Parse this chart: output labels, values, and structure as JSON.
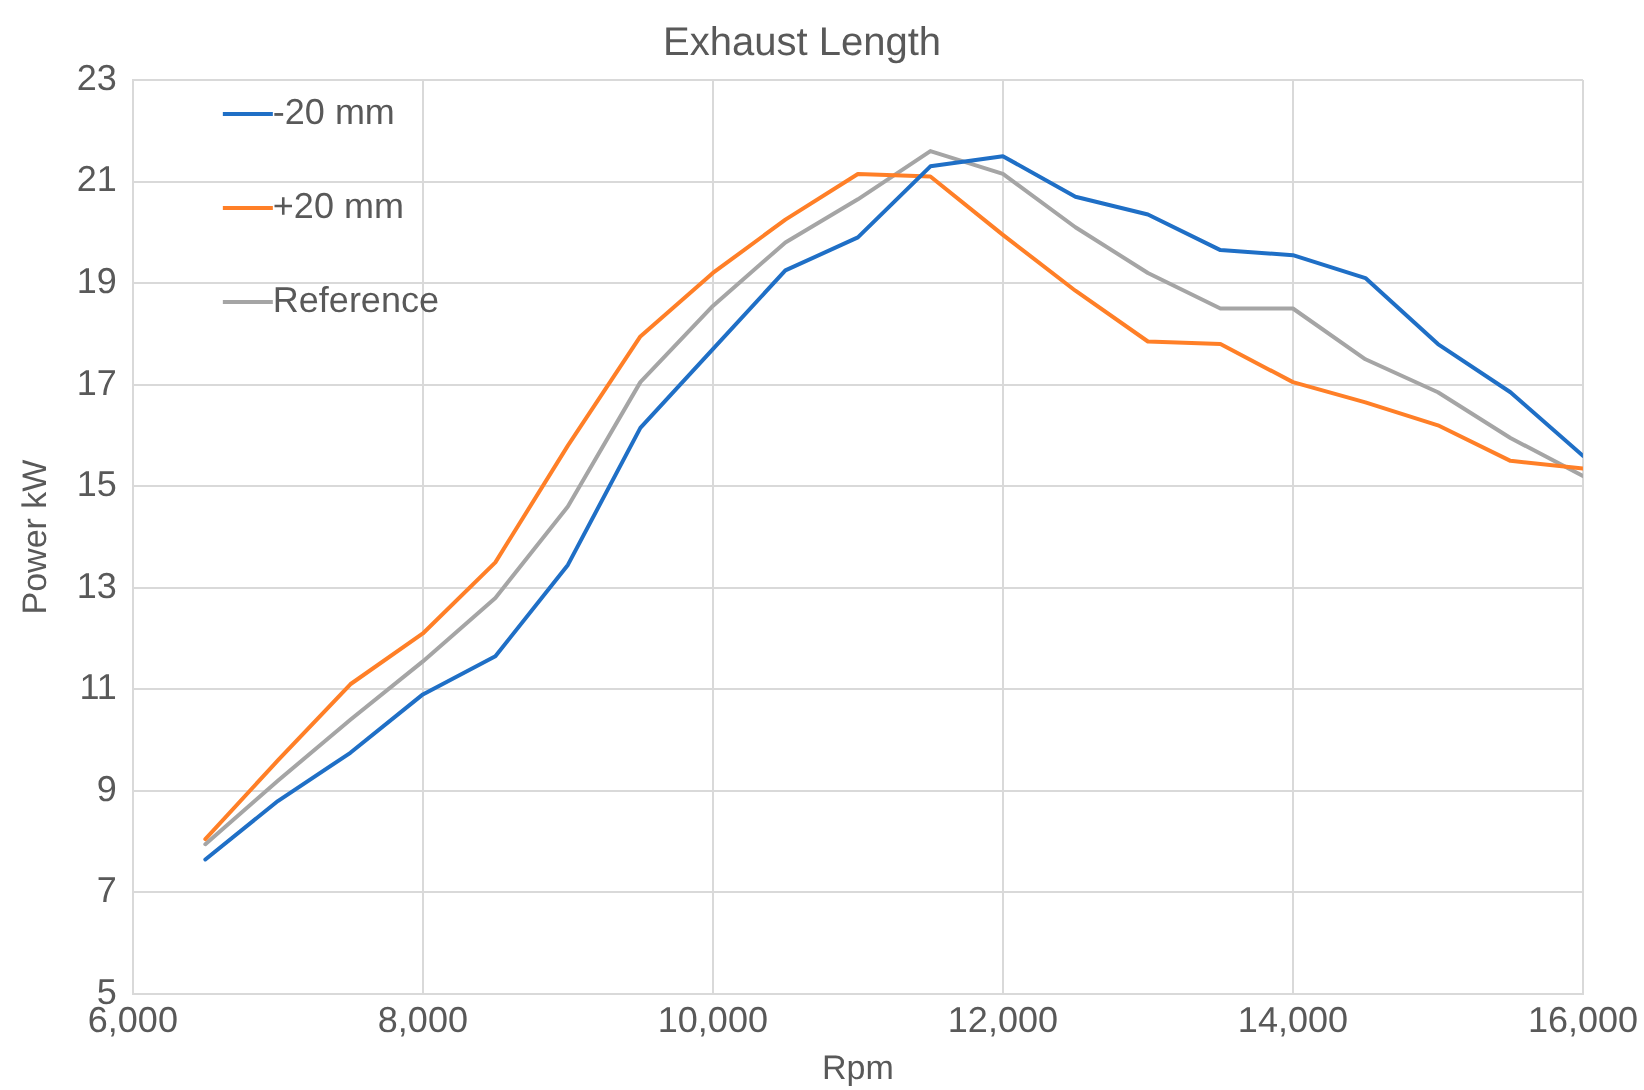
{
  "chart_data": {
    "type": "line",
    "title": "Exhaust Length",
    "xlabel": "Rpm",
    "ylabel": "Power kW",
    "x": [
      6500,
      7000,
      7500,
      8000,
      8500,
      9000,
      9500,
      10000,
      10500,
      11000,
      11500,
      12000,
      12500,
      13000,
      13500,
      14000,
      14500,
      15000,
      15500,
      16000
    ],
    "series": [
      {
        "name": "-20 mm",
        "color": "#1f6fc6",
        "values": [
          7.65,
          8.8,
          9.75,
          10.9,
          11.65,
          13.45,
          16.15,
          17.7,
          19.25,
          19.9,
          21.3,
          21.5,
          20.7,
          20.35,
          19.65,
          19.55,
          19.1,
          17.8,
          16.85,
          15.6
        ]
      },
      {
        "name": "+20 mm",
        "color": "#ff7f27",
        "values": [
          8.05,
          9.6,
          11.1,
          12.1,
          13.5,
          15.8,
          17.95,
          19.2,
          20.25,
          21.15,
          21.1,
          19.95,
          18.85,
          17.85,
          17.8,
          17.05,
          16.65,
          16.2,
          15.5,
          15.35
        ]
      },
      {
        "name": "Reference",
        "color": "#a5a5a5",
        "values": [
          7.95,
          9.2,
          10.4,
          11.55,
          12.8,
          14.6,
          17.05,
          18.55,
          19.8,
          20.65,
          21.6,
          21.15,
          20.1,
          19.2,
          18.5,
          18.5,
          17.5,
          16.85,
          15.95,
          15.2
        ]
      }
    ],
    "xlim": [
      6000,
      16000
    ],
    "xticks": [
      {
        "value": 6000,
        "label": "6,000"
      },
      {
        "value": 8000,
        "label": "8,000"
      },
      {
        "value": 10000,
        "label": "10,000"
      },
      {
        "value": 12000,
        "label": "12,000"
      },
      {
        "value": 14000,
        "label": "14,000"
      },
      {
        "value": 16000,
        "label": "16,000"
      }
    ],
    "ylim": [
      5,
      23
    ],
    "yticks": [
      5,
      7,
      9,
      11,
      13,
      15,
      17,
      19,
      21,
      23
    ],
    "grid": true,
    "legend": "top left",
    "marker": "none",
    "line_style": "solid"
  }
}
